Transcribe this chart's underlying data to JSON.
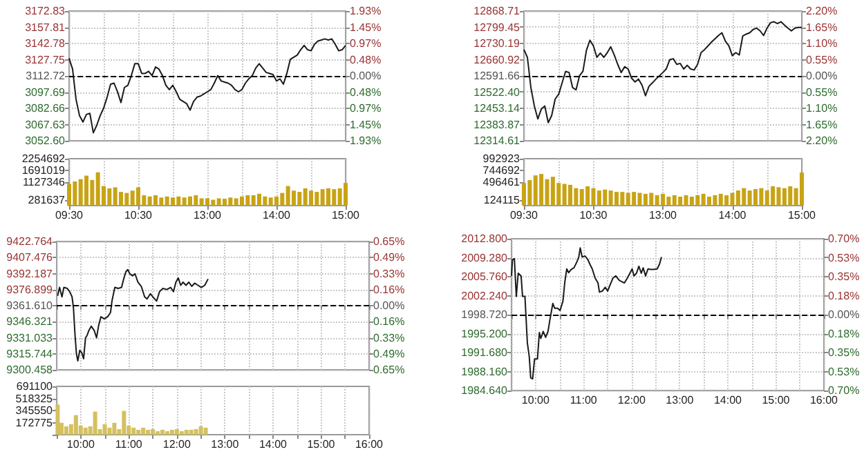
{
  "chart_data": [
    {
      "type": "line",
      "tick_labels": "y",
      "grid": true,
      "marker": "none",
      "line_style": "solid",
      "categories": [
        null,
        null,
        null,
        null,
        null,
        null,
        null,
        null,
        null,
        null,
        null,
        null,
        null,
        null,
        null,
        null,
        null,
        null,
        null,
        null,
        null,
        null,
        null,
        null,
        null,
        null,
        null,
        null,
        null,
        null,
        null,
        null,
        null,
        null,
        null,
        null,
        null,
        null,
        null,
        null,
        null,
        null,
        null,
        null,
        null,
        null,
        null,
        null,
        null,
        null,
        null,
        null,
        null,
        null,
        null,
        null,
        null,
        null,
        null,
        null,
        null,
        null,
        null,
        null,
        null,
        null,
        null,
        null,
        null,
        null,
        null,
        null,
        null,
        null,
        null,
        null,
        null,
        null,
        null,
        null,
        null
      ],
      "ylim": [
        3052.6,
        3172.83
      ],
      "yticks": [
        {
          "value": 3052.6,
          "label": "3052.60"
        },
        3067.63,
        3082.66,
        3097.69,
        3112.72,
        3127.75,
        3142.78,
        3157.81,
        3172.83
      ],
      "y2lim": [
        -1.93,
        1.93
      ],
      "y2ticks": [
        {
          "value": -1.93,
          "label": "1.93%"
        },
        {
          "value": -1.45,
          "label": "1.45%"
        },
        {
          "value": -0.97,
          "label": "0.97%"
        },
        {
          "value": -0.48,
          "label": "0.48%"
        },
        {
          "value": 0,
          "label": "0.00%"
        },
        {
          "value": 0.48,
          "label": "0.48%"
        },
        {
          "value": 0.97,
          "label": "0.97%"
        },
        {
          "value": 1.45,
          "label": "1.45%"
        },
        {
          "value": 1.93,
          "label": "1.93%"
        }
      ],
      "ref_lines": [
        {
          "axis": "y",
          "value": 3112.72,
          "color": "#000000",
          "line_style": "dashed"
        }
      ],
      "series": [
        {
          "color": "#1a1a1a",
          "values": [
            3129,
            3119,
            3091,
            3076,
            3070,
            3077,
            3078,
            3060,
            3067,
            3076,
            3083,
            3093,
            3105,
            3106,
            3098,
            3088,
            3102,
            3104,
            3113,
            3124,
            3124,
            3115,
            3115,
            3117,
            3113,
            3121,
            3119,
            3113,
            3104,
            3100,
            3104,
            3098,
            3091,
            3089,
            3087,
            3081,
            3089,
            3093,
            3094,
            3096,
            3098,
            3100,
            3106,
            3113,
            3108,
            3107,
            3106,
            3104,
            3100,
            3098,
            3100,
            3106,
            3110,
            3113,
            3120,
            3124,
            3120,
            3116,
            3115,
            3114,
            3108,
            3110,
            3105,
            3115,
            3128,
            3130,
            3132,
            3137,
            3141,
            3137,
            3136,
            3142,
            3145,
            3146,
            3147,
            3146,
            3147,
            3142,
            3136,
            3137,
            3141
          ]
        }
      ]
    },
    {
      "type": "bar",
      "grid": "x",
      "categories": [
        "09:30",
        null,
        null,
        null,
        null,
        null,
        null,
        null,
        null,
        null,
        null,
        null,
        "10:30",
        null,
        null,
        null,
        null,
        null,
        null,
        null,
        null,
        null,
        null,
        null,
        "13:00",
        null,
        null,
        null,
        null,
        null,
        null,
        null,
        null,
        null,
        null,
        null,
        "14:00",
        null,
        null,
        null,
        null,
        null,
        null,
        null,
        null,
        null,
        null,
        null,
        "15:00"
      ],
      "ylim": [
        0,
        2254692
      ],
      "yticks": [
        281637,
        1127346,
        1691019,
        2254692
      ],
      "series": [
        {
          "color": "#c8a415",
          "values": [
            1050000,
            1160000,
            1270000,
            1440000,
            1230000,
            1600000,
            940000,
            830000,
            880000,
            660000,
            610000,
            720000,
            880000,
            500000,
            440000,
            500000,
            390000,
            440000,
            390000,
            440000,
            390000,
            440000,
            500000,
            350000,
            350000,
            280000,
            350000,
            330000,
            390000,
            350000,
            440000,
            500000,
            500000,
            570000,
            440000,
            390000,
            440000,
            610000,
            940000,
            720000,
            660000,
            830000,
            720000,
            660000,
            790000,
            830000,
            790000,
            830000,
            1090000
          ]
        }
      ]
    },
    {
      "type": "line",
      "tick_labels": "y",
      "grid": true,
      "marker": "none",
      "line_style": "solid",
      "categories": [
        null,
        null,
        null,
        null,
        null,
        null,
        null,
        null,
        null,
        null,
        null,
        null,
        null,
        null,
        null,
        null,
        null,
        null,
        null,
        null,
        null,
        null,
        null,
        null,
        null,
        null,
        null,
        null,
        null,
        null,
        null,
        null,
        null,
        null,
        null,
        null,
        null,
        null,
        null,
        null,
        null,
        null,
        null,
        null,
        null,
        null,
        null,
        null,
        null,
        null,
        null,
        null,
        null,
        null,
        null,
        null,
        null,
        null,
        null,
        null,
        null,
        null,
        null,
        null,
        null,
        null,
        null,
        null,
        null,
        null,
        null,
        null,
        null,
        null,
        null,
        null,
        null,
        null,
        null,
        null,
        null
      ],
      "ylim": [
        12314.61,
        12868.71
      ],
      "yticks": [
        12314.61,
        12383.87,
        12453.14,
        {
          "value": 12522.4,
          "label": "12522.40"
        },
        12591.66,
        12660.92,
        12730.19,
        12799.45,
        12868.71
      ],
      "y2lim": [
        -2.2,
        2.2
      ],
      "y2ticks": [
        {
          "value": -2.2,
          "label": "2.20%"
        },
        {
          "value": -1.65,
          "label": "1.65%"
        },
        {
          "value": -1.1,
          "label": "1.10%"
        },
        {
          "value": -0.55,
          "label": "0.55%"
        },
        {
          "value": 0,
          "label": "0.00%"
        },
        {
          "value": 0.55,
          "label": "0.55%"
        },
        {
          "value": 1.1,
          "label": "1.10%"
        },
        {
          "value": 1.65,
          "label": "1.65%"
        },
        {
          "value": 2.2,
          "label": "2.20%"
        }
      ],
      "ref_lines": [
        {
          "axis": "y",
          "value": 12591.66,
          "color": "#000000",
          "line_style": "dashed"
        }
      ],
      "series": [
        {
          "color": "#1a1a1a",
          "values": [
            12704,
            12671,
            12542,
            12463,
            12408,
            12450,
            12463,
            12392,
            12423,
            12493,
            12513,
            12562,
            12611,
            12606,
            12542,
            12532,
            12592,
            12612,
            12701,
            12744,
            12720,
            12671,
            12689,
            12671,
            12691,
            12716,
            12681,
            12641,
            12606,
            12631,
            12621,
            12582,
            12566,
            12578,
            12552,
            12507,
            12547,
            12562,
            12578,
            12592,
            12606,
            12622,
            12661,
            12665,
            12641,
            12645,
            12621,
            12637,
            12621,
            12617,
            12641,
            12691,
            12704,
            12720,
            12736,
            12750,
            12764,
            12776,
            12740,
            12720,
            12678,
            12691,
            12681,
            12762,
            12770,
            12776,
            12790,
            12796,
            12784,
            12764,
            12796,
            12819,
            12823,
            12815,
            12823,
            12809,
            12796,
            12784,
            12796,
            12799,
            12799
          ]
        }
      ]
    },
    {
      "type": "bar",
      "grid": "x",
      "categories": [
        "09:30",
        null,
        null,
        null,
        null,
        null,
        null,
        null,
        null,
        null,
        null,
        null,
        "10:30",
        null,
        null,
        null,
        null,
        null,
        null,
        null,
        null,
        null,
        null,
        null,
        "13:00",
        null,
        null,
        null,
        null,
        null,
        null,
        null,
        null,
        null,
        null,
        null,
        "14:00",
        null,
        null,
        null,
        null,
        null,
        null,
        null,
        null,
        null,
        null,
        null,
        "15:00"
      ],
      "ylim": [
        0,
        992923
      ],
      "yticks": [
        124115,
        496461,
        744692,
        992923
      ],
      "series": [
        {
          "color": "#c8a415",
          "values": [
            480000,
            540000,
            640000,
            670000,
            560000,
            610000,
            480000,
            460000,
            440000,
            370000,
            350000,
            410000,
            370000,
            320000,
            340000,
            320000,
            290000,
            290000,
            270000,
            290000,
            270000,
            250000,
            270000,
            220000,
            250000,
            190000,
            220000,
            190000,
            220000,
            190000,
            220000,
            250000,
            190000,
            220000,
            250000,
            220000,
            270000,
            320000,
            370000,
            320000,
            350000,
            370000,
            320000,
            410000,
            390000,
            370000,
            410000,
            370000,
            700000
          ]
        }
      ]
    },
    {
      "type": "line",
      "tick_labels": "y",
      "grid": true,
      "marker": "none",
      "line_style": "solid",
      "xlim": [
        9.5,
        16
      ],
      "xticks": [
        {
          "value": 9.5,
          "label": null
        },
        {
          "value": 10,
          "label": null
        },
        {
          "value": 10.5,
          "label": null
        },
        {
          "value": 11,
          "label": null
        },
        {
          "value": 11.5,
          "label": null
        },
        {
          "value": 12,
          "label": null
        },
        {
          "value": 12.5,
          "label": null
        },
        {
          "value": 13,
          "label": null
        },
        {
          "value": 13.5,
          "label": null
        },
        {
          "value": 14,
          "label": null
        },
        {
          "value": 14.5,
          "label": null
        },
        {
          "value": 15,
          "label": null
        },
        {
          "value": 15.5,
          "label": null
        },
        {
          "value": 16,
          "label": null
        }
      ],
      "ylim": [
        9300.458,
        9422.764
      ],
      "yticks": [
        9300.458,
        9315.744,
        9331.033,
        9346.321,
        {
          "value": 9361.61,
          "label": "9361.610"
        },
        9376.899,
        9392.187,
        9407.476,
        9422.764
      ],
      "y2lim": [
        -0.65,
        0.65
      ],
      "y2ticks": [
        {
          "value": -0.65,
          "label": "0.65%"
        },
        {
          "value": -0.49,
          "label": "0.49%"
        },
        {
          "value": -0.33,
          "label": "0.33%"
        },
        {
          "value": -0.16,
          "label": "0.16%"
        },
        {
          "value": 0,
          "label": "0.00%"
        },
        {
          "value": 0.16,
          "label": "0.16%"
        },
        {
          "value": 0.33,
          "label": "0.33%"
        },
        {
          "value": 0.49,
          "label": "0.49%"
        },
        {
          "value": 0.65,
          "label": "0.65%"
        }
      ],
      "ref_lines": [
        {
          "axis": "y",
          "value": 9361.61,
          "color": "#000000",
          "line_style": "dashed"
        }
      ],
      "x": [
        9.52,
        9.56,
        9.61,
        9.65,
        9.72,
        9.77,
        9.82,
        9.85,
        9.88,
        9.91,
        9.94,
        9.98,
        10.02,
        10.06,
        10.1,
        10.13,
        10.17,
        10.22,
        10.28,
        10.33,
        10.37,
        10.42,
        10.49,
        10.56,
        10.62,
        10.65,
        10.71,
        10.78,
        10.85,
        10.9,
        10.94,
        10.98,
        11.02,
        11.08,
        11.13,
        11.19,
        11.26,
        11.33,
        11.38,
        11.45,
        11.5,
        11.58,
        11.64,
        11.71,
        11.79,
        11.87,
        11.93,
        11.98,
        12.03,
        12.08,
        12.13,
        12.19,
        12.25,
        12.31,
        12.37,
        12.44,
        12.51,
        12.58,
        12.65
      ],
      "series": [
        {
          "color": "#1a1a1a",
          "values": [
            9371,
            9379,
            9370,
            9379,
            9378,
            9375,
            9370,
            9359,
            9335,
            9316,
            9309,
            9319,
            9317,
            9311,
            9331,
            9333,
            9338,
            9342,
            9338,
            9331,
            9342,
            9351,
            9349,
            9351,
            9355,
            9366,
            9379,
            9378,
            9379,
            9388,
            9394,
            9396,
            9392,
            9390,
            9392,
            9384,
            9380,
            9370,
            9368,
            9373,
            9370,
            9366,
            9375,
            9378,
            9377,
            9379,
            9375,
            9384,
            9388,
            9381,
            9384,
            9381,
            9384,
            9380,
            9383,
            9381,
            9379,
            9381,
            9387
          ]
        }
      ]
    },
    {
      "type": "bar",
      "grid": "x",
      "xlim": [
        9.5,
        16
      ],
      "xticks": [
        {
          "value": 9.5,
          "label": null
        },
        {
          "value": 10,
          "label": "10:00"
        },
        {
          "value": 10.5,
          "label": null
        },
        {
          "value": 11,
          "label": "11:00"
        },
        {
          "value": 11.5,
          "label": null
        },
        {
          "value": 12,
          "label": "12:00"
        },
        {
          "value": 12.5,
          "label": null
        },
        {
          "value": 13,
          "label": "13:00"
        },
        {
          "value": 13.5,
          "label": null
        },
        {
          "value": 14,
          "label": "14:00"
        },
        {
          "value": 14.5,
          "label": null
        },
        {
          "value": 15,
          "label": "15:00"
        },
        {
          "value": 15.5,
          "label": null
        },
        {
          "value": 16,
          "label": "16:00"
        }
      ],
      "ylim": [
        0,
        691100
      ],
      "yticks": [
        172775,
        345550,
        518325,
        691100
      ],
      "x": [
        9.52,
        9.6,
        9.7,
        9.8,
        9.9,
        10.0,
        10.1,
        10.2,
        10.3,
        10.4,
        10.5,
        10.6,
        10.7,
        10.8,
        10.9,
        11.0,
        11.1,
        11.2,
        11.3,
        11.4,
        11.5,
        11.6,
        11.7,
        11.8,
        11.9,
        12.0,
        12.1,
        12.2,
        12.3,
        12.4,
        12.5,
        12.6
      ],
      "series": [
        {
          "color": "#d4c060",
          "values": [
            430000,
            170000,
            120000,
            150000,
            280000,
            130000,
            100000,
            120000,
            330000,
            80000,
            150000,
            100000,
            170000,
            80000,
            340000,
            130000,
            100000,
            70000,
            100000,
            70000,
            80000,
            50000,
            70000,
            50000,
            70000,
            80000,
            50000,
            70000,
            70000,
            80000,
            120000,
            100000
          ]
        }
      ]
    },
    {
      "type": "line",
      "grid": true,
      "marker": "none",
      "line_style": "solid",
      "xlim": [
        9.5,
        16
      ],
      "xticks": [
        {
          "value": 9.5,
          "label": null
        },
        {
          "value": 10,
          "label": "10:00"
        },
        {
          "value": 10.5,
          "label": null
        },
        {
          "value": 11,
          "label": "11:00"
        },
        {
          "value": 11.5,
          "label": null
        },
        {
          "value": 12,
          "label": "12:00"
        },
        {
          "value": 12.5,
          "label": null
        },
        {
          "value": 13,
          "label": "13:00"
        },
        {
          "value": 13.5,
          "label": null
        },
        {
          "value": 14,
          "label": "14:00"
        },
        {
          "value": 14.5,
          "label": null
        },
        {
          "value": 15,
          "label": "15:00"
        },
        {
          "value": 15.5,
          "label": null
        },
        {
          "value": 16,
          "label": "16:00"
        }
      ],
      "ylim": [
        1984.64,
        2012.8
      ],
      "yticks": [
        {
          "value": 1984.64,
          "label": "1984.640"
        },
        {
          "value": 1988.16,
          "label": "1988.160"
        },
        {
          "value": 1991.68,
          "label": "1991.680"
        },
        {
          "value": 1995.2,
          "label": "1995.200"
        },
        {
          "value": 1998.72,
          "label": "1998.720"
        },
        {
          "value": 2002.24,
          "label": "2002.240"
        },
        {
          "value": 2005.76,
          "label": "2005.760"
        },
        {
          "value": 2009.28,
          "label": "2009.280"
        },
        {
          "value": 2012.8,
          "label": "2012.800"
        }
      ],
      "y2lim": [
        -0.7,
        0.7
      ],
      "y2ticks": [
        {
          "value": -0.7,
          "label": "0.70%"
        },
        {
          "value": -0.53,
          "label": "0.53%"
        },
        {
          "value": -0.35,
          "label": "0.35%"
        },
        {
          "value": -0.18,
          "label": "0.18%"
        },
        {
          "value": 0,
          "label": "0.00%"
        },
        {
          "value": 0.18,
          "label": "0.18%"
        },
        {
          "value": 0.35,
          "label": "0.35%"
        },
        {
          "value": 0.53,
          "label": "0.53%"
        },
        {
          "value": 0.7,
          "label": "0.70%"
        }
      ],
      "ref_lines": [
        {
          "axis": "y",
          "value": 1998.72,
          "color": "#000000",
          "line_style": "dashed"
        }
      ],
      "x": [
        9.5,
        9.52,
        9.56,
        9.6,
        9.64,
        9.7,
        9.73,
        9.78,
        9.83,
        9.87,
        9.9,
        9.94,
        9.98,
        10.04,
        10.08,
        10.11,
        10.16,
        10.21,
        10.26,
        10.3,
        10.36,
        10.4,
        10.46,
        10.51,
        10.57,
        10.61,
        10.65,
        10.69,
        10.74,
        10.8,
        10.86,
        10.9,
        10.93,
        10.97,
        11.03,
        11.09,
        11.14,
        11.18,
        11.24,
        11.3,
        11.33,
        11.39,
        11.45,
        11.5,
        11.55,
        11.61,
        11.67,
        11.74,
        11.8,
        11.85,
        11.91,
        11.97,
        12.01,
        12.05,
        12.1,
        12.15,
        12.2,
        12.24,
        12.29,
        12.34,
        12.4,
        12.45,
        12.53,
        12.58,
        12.62
      ],
      "series": [
        {
          "color": "#1a1a1a",
          "values": [
            2005.9,
            2008.9,
            2009.1,
            2002.1,
            2006.4,
            2005.9,
            2002.1,
            2002.1,
            1993.5,
            1990.9,
            1987.0,
            1986.8,
            1990.5,
            1990.5,
            1995.4,
            1994.3,
            1995.6,
            1994.5,
            1995.6,
            1997.8,
            2000.8,
            1999.9,
            1999.9,
            1999.5,
            2001.2,
            2004.8,
            2007.2,
            2006.5,
            2007.1,
            2007.4,
            2008.5,
            2009.4,
            2011.1,
            2009.4,
            2009.6,
            2008.9,
            2007.9,
            2007.2,
            2005.5,
            2004.6,
            2002.9,
            2003.1,
            2003.8,
            2003.1,
            2004.2,
            2005.5,
            2005.9,
            2005.1,
            2004.8,
            2004.6,
            2005.5,
            2006.5,
            2007.2,
            2005.9,
            2006.4,
            2007.7,
            2006.4,
            2007.4,
            2005.9,
            2007.2,
            2007.1,
            2007.1,
            2007.2,
            2008.1,
            2009.4
          ]
        }
      ]
    }
  ]
}
